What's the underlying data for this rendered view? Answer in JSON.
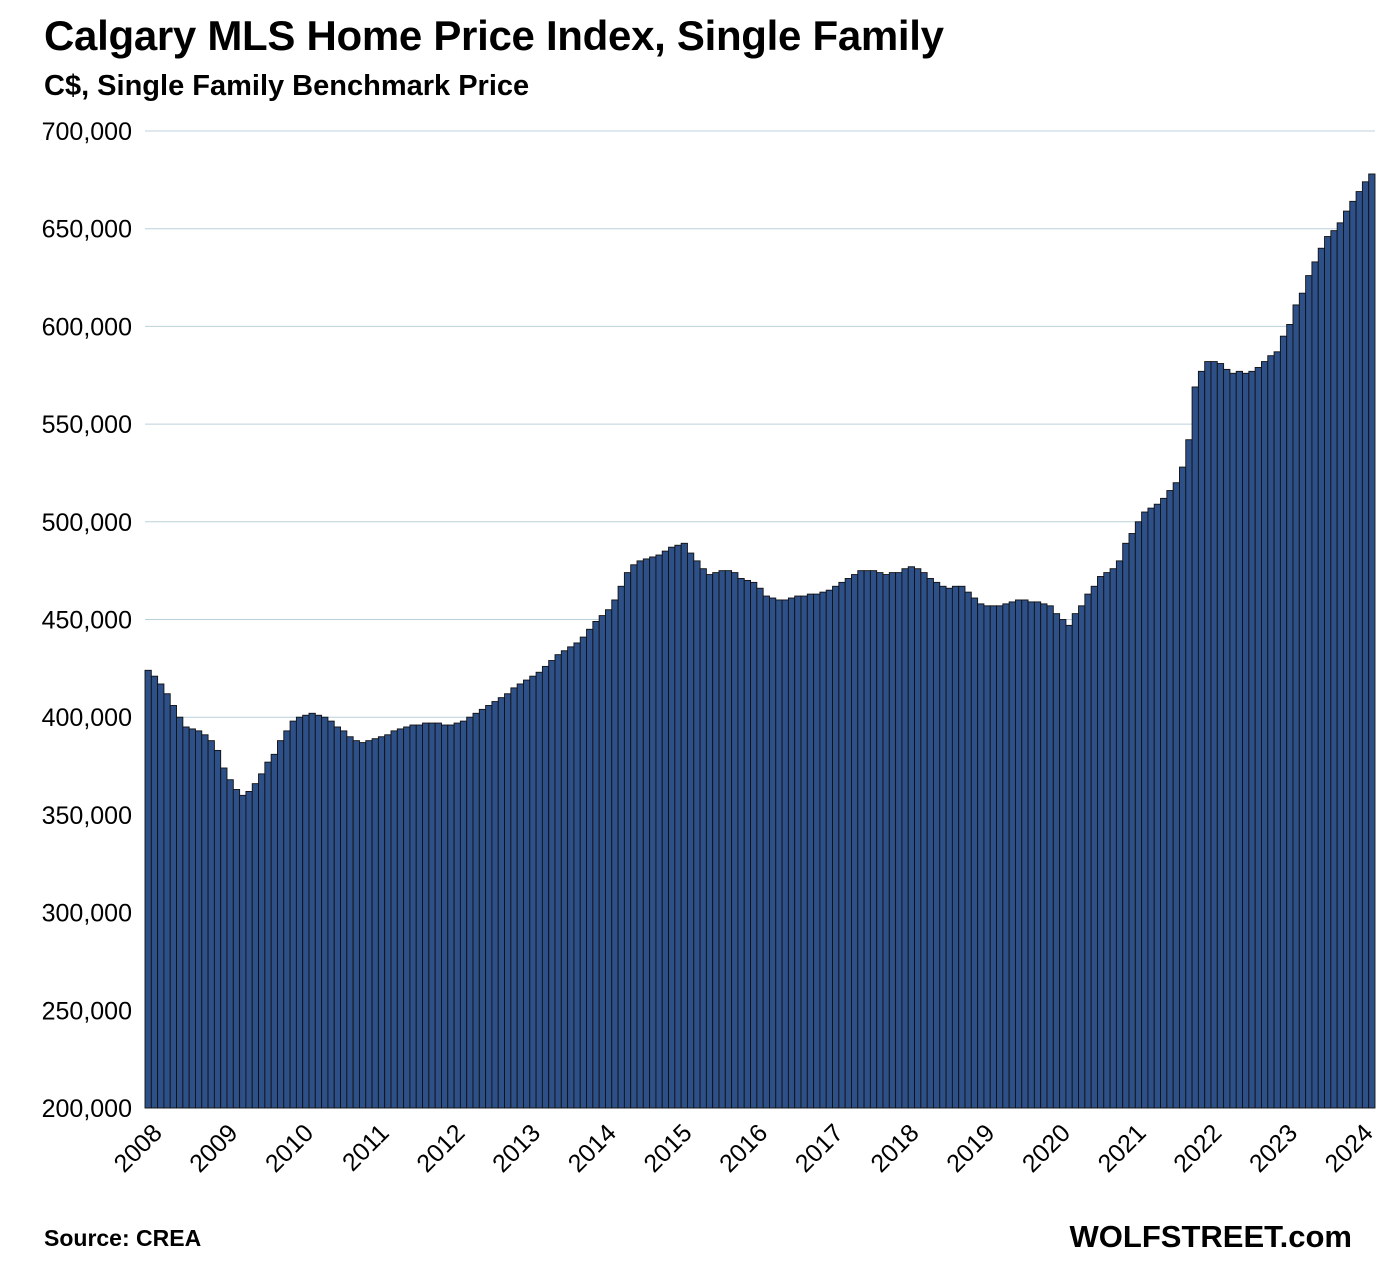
{
  "title": "Calgary MLS Home Price Index, Single Family",
  "subtitle": "C$, Single Family Benchmark Price",
  "source": "Source: CREA",
  "brand": "WOLFSTREET.com",
  "colors": {
    "bar": "#2e5089",
    "bar_edge": "#111111",
    "grid": "#bcd0dc"
  },
  "chart_data": {
    "type": "bar",
    "title": "Calgary MLS Home Price Index, Single Family",
    "subtitle": "C$, Single Family Benchmark Price",
    "ylabel": "",
    "xlabel": "",
    "ylim": [
      200000,
      700000
    ],
    "yticks": [
      "200,000",
      "250,000",
      "300,000",
      "350,000",
      "400,000",
      "450,000",
      "500,000",
      "550,000",
      "600,000",
      "650,000",
      "700,000"
    ],
    "year_labels": [
      "2008",
      "2009",
      "2010",
      "2011",
      "2012",
      "2013",
      "2014",
      "2015",
      "2016",
      "2017",
      "2018",
      "2019",
      "2020",
      "2021",
      "2022",
      "2023",
      "2024"
    ],
    "grid": true,
    "frequency": "monthly, Jan 2008 - Jun 2024",
    "series": [
      {
        "values": [
          424000,
          421000,
          417000,
          412000,
          406000,
          400000,
          395000,
          394000,
          393000,
          391000,
          388000,
          383000,
          374000,
          368000,
          363000,
          360000,
          362000,
          366000,
          371000,
          377000,
          381000,
          388000,
          393000,
          398000,
          400000,
          401000,
          402000,
          401000,
          400000,
          398000,
          395000,
          393000,
          390000,
          388000,
          387000,
          388000,
          389000,
          390000,
          391000,
          393000,
          394000,
          395000,
          396000,
          396000,
          397000,
          397000,
          397000,
          396000,
          396000,
          397000,
          398000,
          400000,
          402000,
          404000,
          406000,
          408000,
          410000,
          412000,
          415000,
          417000,
          419000,
          421000,
          423000,
          426000,
          429000,
          432000,
          434000,
          436000,
          438000,
          441000,
          445000,
          449000,
          452000,
          455000,
          460000,
          467000,
          474000,
          478000,
          480000,
          481000,
          482000,
          483000,
          485000,
          487000,
          488000,
          489000,
          484000,
          480000,
          476000,
          473000,
          474000,
          475000,
          475000,
          474000,
          471000,
          470000,
          469000,
          466000,
          462000,
          461000,
          460000,
          460000,
          461000,
          462000,
          462000,
          463000,
          463000,
          464000,
          465000,
          467000,
          469000,
          471000,
          473000,
          475000,
          475000,
          475000,
          474000,
          473000,
          474000,
          474000,
          476000,
          477000,
          476000,
          474000,
          471000,
          469000,
          467000,
          466000,
          467000,
          467000,
          464000,
          461000,
          458000,
          457000,
          457000,
          457000,
          458000,
          459000,
          460000,
          460000,
          459000,
          459000,
          458000,
          457000,
          453000,
          450000,
          447000,
          453000,
          457000,
          463000,
          467000,
          472000,
          474000,
          476000,
          480000,
          489000,
          494000,
          500000,
          505000,
          507000,
          509000,
          512000,
          516000,
          520000,
          528000,
          542000,
          569000,
          577000,
          582000,
          582000,
          581000,
          578000,
          576000,
          577000,
          576000,
          577000,
          579000,
          582000,
          585000,
          587000,
          595000,
          601000,
          611000,
          617000,
          626000,
          633000,
          640000,
          646000,
          649000,
          653000,
          659000,
          664000,
          669000,
          674000,
          678000
        ]
      }
    ]
  }
}
